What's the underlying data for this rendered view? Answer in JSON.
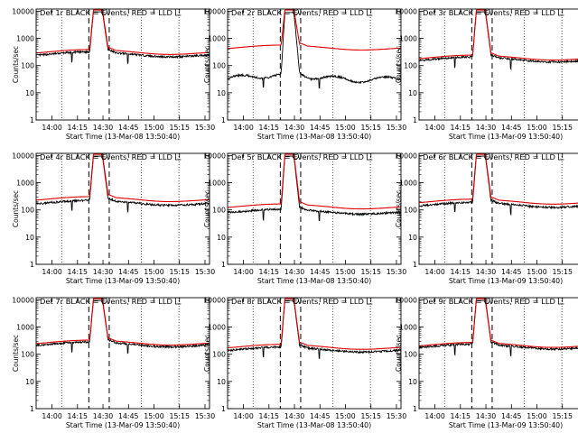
{
  "colors": {
    "events": "#000000",
    "lld": "#e00000",
    "axis": "#000000",
    "marker": "#000000"
  },
  "common": {
    "ylabel": "Counts/sec",
    "xlabel_prefix": "Start Time",
    "x_tick_labels": [
      "14:00",
      "14:15",
      "14:30",
      "14:45",
      "15:00",
      "15:15",
      "15:30"
    ],
    "y_tick_labels": [
      "1",
      "10",
      "100",
      "1000",
      "10000"
    ],
    "y_scale": "log",
    "ylim": [
      1,
      12000
    ],
    "xlim_minutes_after_13_50_40": [
      0,
      102
    ]
  },
  "chart_data": [
    {
      "type": "line",
      "title": "Det 1r BLACK = Events, RED = LLD",
      "xlabel": "Start Time (13-Mar-08 13:50:40)",
      "x": "minutes",
      "series": [
        {
          "name": "BLACK = Events",
          "level": 270,
          "peak": 9500,
          "shape": "flat"
        },
        {
          "name": "RED = LLD",
          "level": 330,
          "peak": 11000,
          "shape": "flat"
        }
      ]
    },
    {
      "type": "line",
      "title": "Det 2r BLACK = Events, RED = LLD",
      "xlabel": "Start Time (13-Mar-08 13:50:40)",
      "series": [
        {
          "name": "BLACK = Events",
          "level": 38,
          "peak": 9000,
          "shape": "wavy"
        },
        {
          "name": "RED = LLD",
          "level": 480,
          "peak": 11000,
          "shape": "flat"
        }
      ]
    },
    {
      "type": "line",
      "title": "Det 3r BLACK = Events, RED = LLD",
      "xlabel": "Start Time (13-Mar-09 13:50:40)",
      "series": [
        {
          "name": "BLACK = Events",
          "level": 175,
          "peak": 9500,
          "shape": "flat"
        },
        {
          "name": "RED = LLD",
          "level": 205,
          "peak": 11000,
          "shape": "flat"
        }
      ]
    },
    {
      "type": "line",
      "title": "Det 4r BLACK = Events, RED = LLD",
      "xlabel": "Start Time (13-Mar-09 13:50:40)",
      "series": [
        {
          "name": "BLACK = Events",
          "level": 190,
          "peak": 9500,
          "shape": "flat"
        },
        {
          "name": "RED = LLD",
          "level": 260,
          "peak": 11000,
          "shape": "flat"
        }
      ]
    },
    {
      "type": "line",
      "title": "Det 5r BLACK = Events, RED = LLD",
      "xlabel": "Start Time (13-Mar-08 13:50:40)",
      "series": [
        {
          "name": "BLACK = Events",
          "level": 90,
          "peak": 9500,
          "shape": "flat"
        },
        {
          "name": "RED = LLD",
          "level": 140,
          "peak": 11000,
          "shape": "flat"
        }
      ]
    },
    {
      "type": "line",
      "title": "Det 6r BLACK = Events, RED = LLD",
      "xlabel": "Start Time (13-Mar-09 13:50:40)",
      "series": [
        {
          "name": "BLACK = Events",
          "level": 160,
          "peak": 9500,
          "shape": "flat"
        },
        {
          "name": "RED = LLD",
          "level": 210,
          "peak": 11000,
          "shape": "flat"
        }
      ]
    },
    {
      "type": "line",
      "title": "Det 7r BLACK = Events, RED = LLD",
      "xlabel": "Start Time (13-Mar-09 13:50:40)",
      "series": [
        {
          "name": "BLACK = Events",
          "level": 240,
          "peak": 9500,
          "shape": "flat"
        },
        {
          "name": "RED = LLD",
          "level": 280,
          "peak": 11000,
          "shape": "flat"
        }
      ]
    },
    {
      "type": "line",
      "title": "Det 8r BLACK = Events, RED = LLD",
      "xlabel": "Start Time (13-Mar-08 13:50:40)",
      "series": [
        {
          "name": "BLACK = Events",
          "level": 155,
          "peak": 9500,
          "shape": "flat"
        },
        {
          "name": "RED = LLD",
          "level": 195,
          "peak": 11000,
          "shape": "flat"
        }
      ]
    },
    {
      "type": "line",
      "title": "Det 9r BLACK = Events, RED = LLD",
      "xlabel": "Start Time (13-Mar-09 13:50:40)",
      "series": [
        {
          "name": "BLACK = Events",
          "level": 200,
          "peak": 9500,
          "shape": "flat"
        },
        {
          "name": "RED = LLD",
          "level": 230,
          "peak": 11000,
          "shape": "flat"
        }
      ]
    }
  ]
}
